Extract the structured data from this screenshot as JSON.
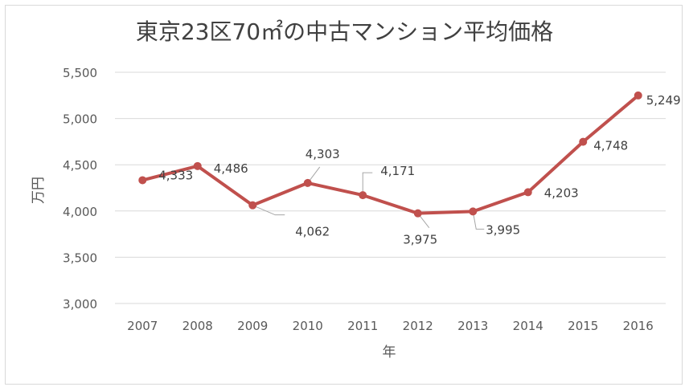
{
  "chart_data": {
    "type": "line",
    "title": "東京23区70㎡の中古マンション平均価格",
    "xlabel": "年",
    "ylabel": "万円",
    "categories": [
      "2007",
      "2008",
      "2009",
      "2010",
      "2011",
      "2012",
      "2013",
      "2014",
      "2015",
      "2016"
    ],
    "series": [
      {
        "values": [
          4333,
          4486,
          4062,
          4303,
          4171,
          3975,
          3995,
          4203,
          4748,
          5249
        ],
        "labels": [
          "4,333",
          "4,486",
          "4,062",
          "4,303",
          "4,171",
          "3,975",
          "3,995",
          "4,203",
          "4,748",
          "5,249"
        ],
        "color": "#c0504d"
      }
    ],
    "ylim": [
      3000,
      5500
    ],
    "yticks": [
      3000,
      3500,
      4000,
      4500,
      5000,
      5500
    ],
    "ytick_labels": [
      "3,000",
      "3,500",
      "4,000",
      "4,500",
      "5,000",
      "5,500"
    ],
    "grid": true,
    "legend": "none"
  }
}
